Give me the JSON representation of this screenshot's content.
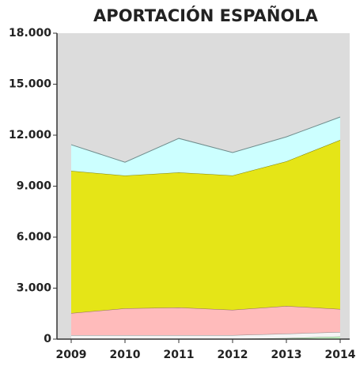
{
  "chart_data": {
    "type": "stacked_area",
    "title": "APORTACIÓN ESPAÑOLA",
    "x": [
      2009,
      2010,
      2011,
      2012,
      2013,
      2014
    ],
    "xticks": [
      2009,
      2010,
      2011,
      2012,
      2013,
      2014
    ],
    "xlim": [
      2009,
      2014
    ],
    "ylim": [
      0,
      18000
    ],
    "yticks": [
      0,
      {
        "value": 3000,
        "label": "3.000"
      },
      {
        "value": 6000,
        "label": "6.000"
      },
      {
        "value": 9000,
        "label": "9.000"
      },
      {
        "value": 12000,
        "label": "12.000"
      },
      {
        "value": 15000,
        "label": "15.000"
      },
      {
        "value": 18000,
        "label": "18.000"
      }
    ],
    "background": "#dcdcdc",
    "series": [
      {
        "color": "#ccffcc",
        "values": [
          20,
          20,
          20,
          20,
          60,
          150
        ]
      },
      {
        "color": "#f4f4f4",
        "values": [
          210,
          210,
          210,
          210,
          260,
          270
        ]
      },
      {
        "color": "#ffbbbb",
        "values": [
          1300,
          1580,
          1630,
          1490,
          1630,
          1350
        ]
      },
      {
        "color": "#e5e517",
        "values": [
          8370,
          7810,
          7950,
          7910,
          8510,
          9950
        ]
      },
      {
        "color": "#ccffff",
        "values": [
          1540,
          790,
          2000,
          1350,
          1440,
          1350
        ]
      }
    ]
  }
}
